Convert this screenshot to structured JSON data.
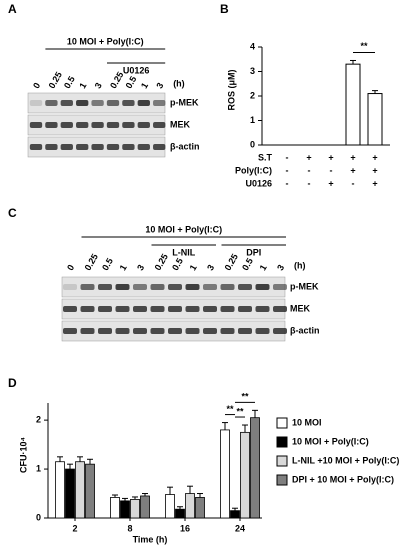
{
  "blots": [
    {
      "panel": "A",
      "treatment": "10 MOI + Poly(I:C)",
      "groups": [
        "U0126"
      ],
      "unit": "(h)",
      "lanes": [
        "0",
        "0.25",
        "0.5",
        "1",
        "3",
        "0.25",
        "0.5",
        "1",
        "3"
      ],
      "rows": [
        "p-MEK",
        "MEK",
        "β-actin"
      ]
    },
    {
      "panel": "C",
      "treatment": "10 MOI + Poly(I:C)",
      "groups": [
        "L-NIL",
        "DPI"
      ],
      "unit": "(h)",
      "lanes": [
        "0",
        "0.25",
        "0.5",
        "1",
        "3",
        "0.25",
        "0.5",
        "1",
        "3",
        "0.25",
        "0.5",
        "1",
        "3"
      ],
      "rows": [
        "p-MEK",
        "MEK",
        "β-actin"
      ]
    }
  ],
  "chart_data": [
    {
      "type": "bar",
      "panel": "B",
      "y_label": "ROS (μM)",
      "categories": [
        null,
        null,
        null,
        null,
        null
      ],
      "values": [
        0,
        0,
        0,
        3.3,
        2.1
      ],
      "errors": [
        0,
        0,
        0,
        0.15,
        0.12
      ],
      "color": "#ffffff",
      "ylim": [
        0,
        4
      ],
      "yticks": [
        0,
        1,
        2,
        3,
        4
      ],
      "conditions": [
        {
          "label": "S.T",
          "marks": [
            "-",
            "+",
            "+",
            "+",
            "+"
          ]
        },
        {
          "label": "Poly(I:C)",
          "marks": [
            "-",
            "-",
            "-",
            "+",
            "+"
          ]
        },
        {
          "label": "U0126",
          "marks": [
            "-",
            "-",
            "+",
            "-",
            "+"
          ]
        }
      ],
      "annotations": [
        "**"
      ]
    },
    {
      "type": "grouped_bar",
      "panel": "D",
      "y_label": "CFU·10⁴",
      "x_label": "Time (h)",
      "categories": [
        "2",
        "8",
        "16",
        "24"
      ],
      "series": [
        {
          "name": "10 MOI",
          "color": "#ffffff",
          "values": [
            1.15,
            0.42,
            0.48,
            1.8
          ],
          "errors": [
            0.1,
            0.05,
            0.15,
            0.15
          ]
        },
        {
          "name": "10 MOI + Poly(I:C)",
          "color": "#000000",
          "values": [
            1.0,
            0.35,
            0.18,
            0.15
          ],
          "errors": [
            0.1,
            0.05,
            0.05,
            0.05
          ]
        },
        {
          "name": "L-NIL +10 MOI + Poly(I:C)",
          "color": "#d9d9d9",
          "values": [
            1.15,
            0.38,
            0.5,
            1.75
          ],
          "errors": [
            0.1,
            0.05,
            0.15,
            0.15
          ]
        },
        {
          "name": "DPI + 10 MOI + Poly(I:C)",
          "color": "#7f7f7f",
          "values": [
            1.1,
            0.45,
            0.42,
            2.05
          ],
          "errors": [
            0.1,
            0.05,
            0.08,
            0.15
          ]
        }
      ],
      "ylim": [
        0,
        2.35
      ],
      "yticks": [
        0,
        1,
        2
      ],
      "annotations": [
        "**",
        "**",
        "**"
      ]
    }
  ]
}
